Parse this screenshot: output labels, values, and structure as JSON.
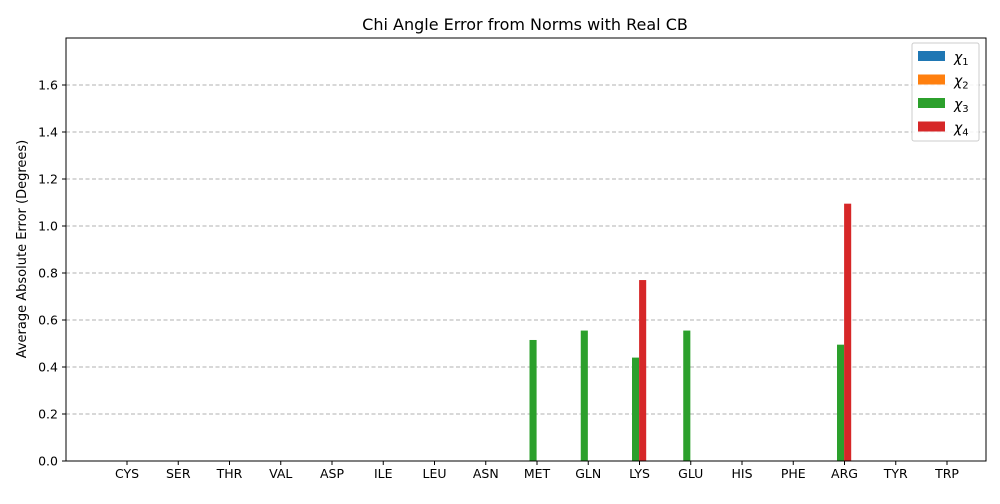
{
  "chart_data": {
    "type": "bar",
    "title": "Chi Angle Error from Norms with Real CB",
    "xlabel": "",
    "ylabel": "Average Absolute Error (Degrees)",
    "ylim": [
      0,
      1.8
    ],
    "yticks": [
      0.0,
      0.2,
      0.4,
      0.6,
      0.8,
      1.0,
      1.2,
      1.4,
      1.6
    ],
    "ytick_labels": [
      "0.0",
      "0.2",
      "0.4",
      "0.6",
      "0.8",
      "1.0",
      "1.2",
      "1.4",
      "1.6"
    ],
    "grid": "horizontal dashed",
    "legend_position": "top-right",
    "categories": [
      "CYS",
      "SER",
      "THR",
      "VAL",
      "ASP",
      "ILE",
      "LEU",
      "ASN",
      "MET",
      "GLN",
      "LYS",
      "GLU",
      "HIS",
      "PHE",
      "ARG",
      "TYR",
      "TRP"
    ],
    "series": [
      {
        "name": "χ1",
        "base": "χ",
        "sub": "1",
        "color": "#1f77b4",
        "values": [
          0,
          0,
          0,
          0,
          0,
          0,
          0,
          0,
          0,
          0,
          0,
          0,
          0,
          0,
          0,
          0,
          0
        ]
      },
      {
        "name": "χ2",
        "base": "χ",
        "sub": "2",
        "color": "#ff7f0e",
        "values": [
          0,
          0,
          0,
          0,
          0,
          0,
          0,
          0,
          0,
          0,
          0,
          0,
          0,
          0,
          0,
          0,
          0
        ]
      },
      {
        "name": "χ3",
        "base": "χ",
        "sub": "3",
        "color": "#2ca02c",
        "values": [
          0,
          0,
          0,
          0,
          0,
          0,
          0,
          0,
          0.515,
          0.555,
          0.44,
          0.555,
          0,
          0,
          0.495,
          0,
          0
        ]
      },
      {
        "name": "χ4",
        "base": "χ",
        "sub": "4",
        "color": "#d62728",
        "values": [
          0,
          0,
          0,
          0,
          0,
          0,
          0,
          0,
          0,
          0,
          0.77,
          0,
          0,
          0,
          1.095,
          0,
          0
        ]
      }
    ]
  }
}
